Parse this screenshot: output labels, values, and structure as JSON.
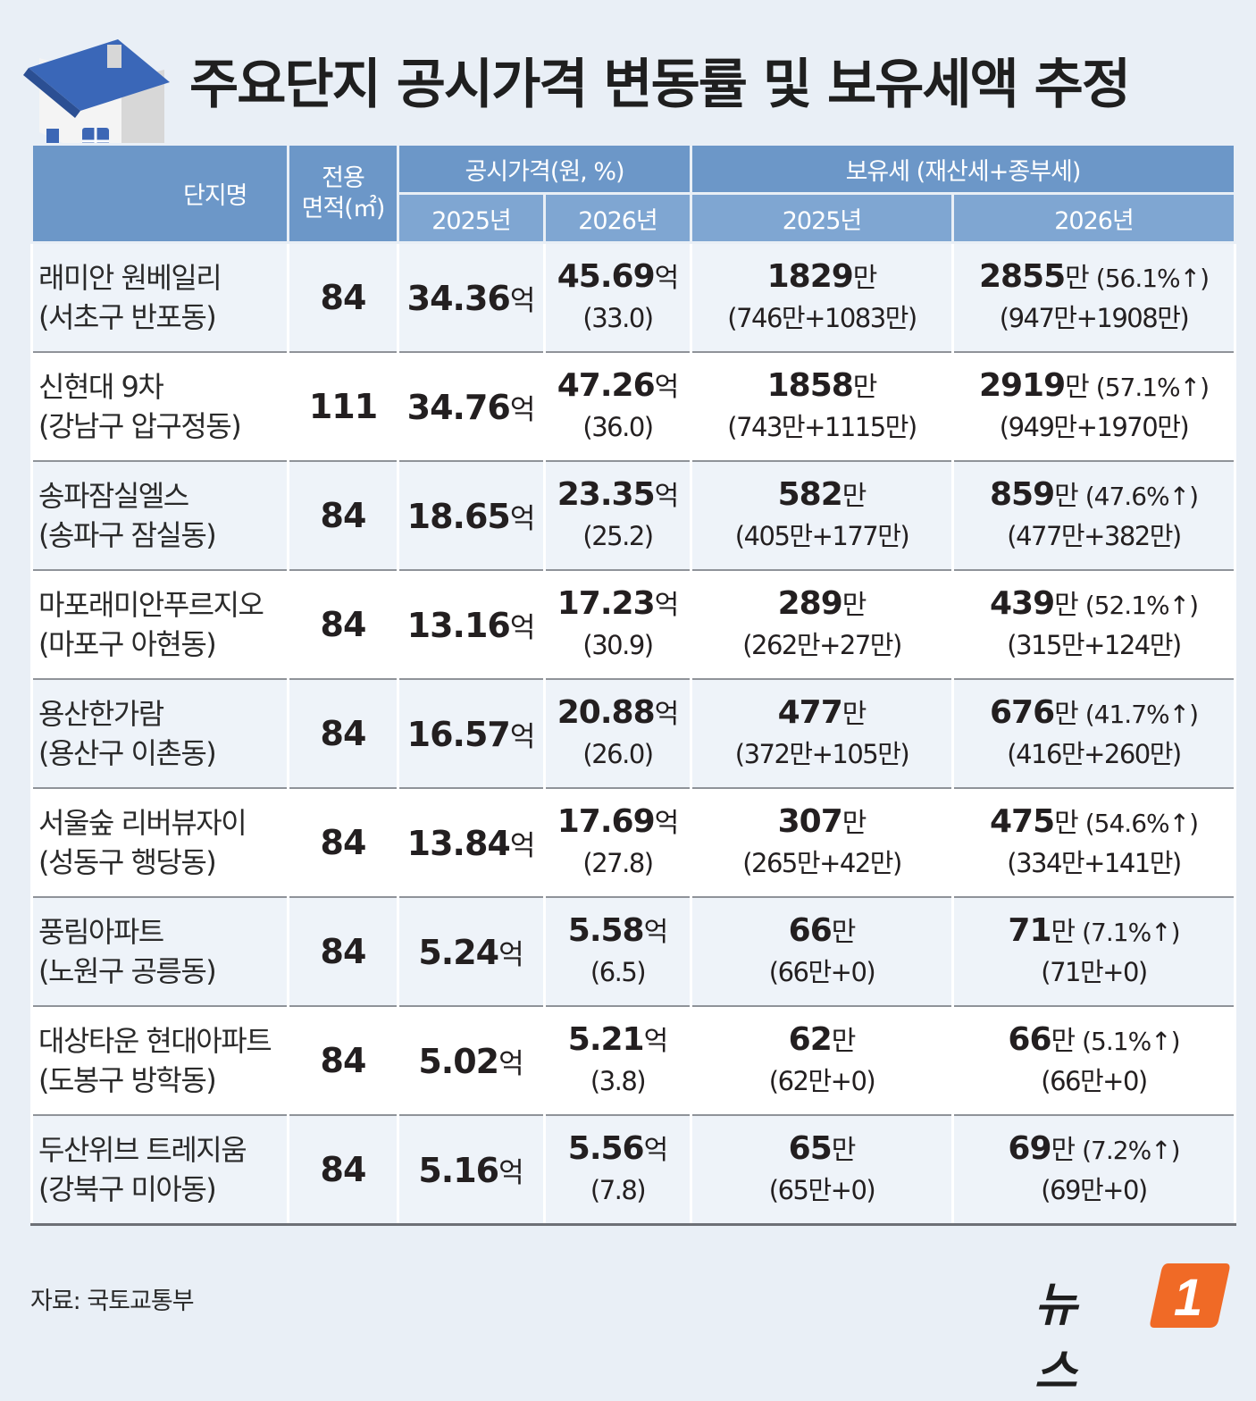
{
  "title": "주요단지 공시가격 변동률 및 보유세액 추정",
  "headers": {
    "name": "단지명",
    "area_line1": "전용",
    "area_line2": "면적(㎡)",
    "price": "공시가격(원, %)",
    "tax": "보유세 (재산세+종부세)",
    "price_2025": "2025년",
    "price_2026": "2026년",
    "tax_2025": "2025년",
    "tax_2026": "2026년"
  },
  "rows": [
    {
      "name": "래미안 원베일리",
      "district": "(서초구 반포동)",
      "area": "84",
      "p25": "34.36",
      "p26": "45.69",
      "p26_change": "(33.0)",
      "t25": "1829",
      "t25_detail": "(746만+1083만)",
      "t26": "2855",
      "t26_change": "(56.1%↑)",
      "t26_detail": "(947만+1908만)"
    },
    {
      "name": "신현대 9차",
      "district": "(강남구 압구정동)",
      "area": "111",
      "p25": "34.76",
      "p26": "47.26",
      "p26_change": "(36.0)",
      "t25": "1858",
      "t25_detail": "(743만+1115만)",
      "t26": "2919",
      "t26_change": "(57.1%↑)",
      "t26_detail": "(949만+1970만)"
    },
    {
      "name": "송파잠실엘스",
      "district": "(송파구 잠실동)",
      "area": "84",
      "p25": "18.65",
      "p26": "23.35",
      "p26_change": "(25.2)",
      "t25": "582",
      "t25_detail": "(405만+177만)",
      "t26": "859",
      "t26_change": "(47.6%↑)",
      "t26_detail": "(477만+382만)"
    },
    {
      "name": "마포래미안푸르지오",
      "district": "(마포구 아현동)",
      "area": "84",
      "p25": "13.16",
      "p26": "17.23",
      "p26_change": "(30.9)",
      "t25": "289",
      "t25_detail": "(262만+27만)",
      "t26": "439",
      "t26_change": "(52.1%↑)",
      "t26_detail": "(315만+124만)"
    },
    {
      "name": "용산한가람",
      "district": "(용산구 이촌동)",
      "area": "84",
      "p25": "16.57",
      "p26": "20.88",
      "p26_change": "(26.0)",
      "t25": "477",
      "t25_detail": "(372만+105만)",
      "t26": "676",
      "t26_change": "(41.7%↑)",
      "t26_detail": "(416만+260만)"
    },
    {
      "name": "서울숲 리버뷰자이",
      "district": "(성동구 행당동)",
      "area": "84",
      "p25": "13.84",
      "p26": "17.69",
      "p26_change": "(27.8)",
      "t25": "307",
      "t25_detail": "(265만+42만)",
      "t26": "475",
      "t26_change": "(54.6%↑)",
      "t26_detail": "(334만+141만)"
    },
    {
      "name": "풍림아파트",
      "district": "(노원구 공릉동)",
      "area": "84",
      "p25": "5.24",
      "p26": "5.58",
      "p26_change": "(6.5)",
      "t25": "66",
      "t25_detail": "(66만+0)",
      "t26": "71",
      "t26_change": "(7.1%↑)",
      "t26_detail": "(71만+0)"
    },
    {
      "name": "대상타운 현대아파트",
      "district": "(도봉구 방학동)",
      "area": "84",
      "p25": "5.02",
      "p26": "5.21",
      "p26_change": "(3.8)",
      "t25": "62",
      "t25_detail": "(62만+0)",
      "t26": "66",
      "t26_change": "(5.1%↑)",
      "t26_detail": "(66만+0)"
    },
    {
      "name": "두산위브 트레지움",
      "district": "(강북구 미아동)",
      "area": "84",
      "p25": "5.16",
      "p26": "5.56",
      "p26_change": "(7.8)",
      "t25": "65",
      "t25_detail": "(65만+0)",
      "t26": "69",
      "t26_change": "(7.2%↑)",
      "t26_detail": "(69만+0)"
    }
  ],
  "units": {
    "eok": "억",
    "man": "만"
  },
  "source": "자료: 국토교통부",
  "logo": {
    "text": "뉴스",
    "badge": "1"
  },
  "icons": {
    "illustration": "house-on-coins-icon"
  },
  "colors": {
    "header": "#6c97c8",
    "subheader": "#7fa6d2",
    "background": "#e9eff6",
    "row_band": "#ffffff",
    "logo_accent": "#f06a26"
  }
}
